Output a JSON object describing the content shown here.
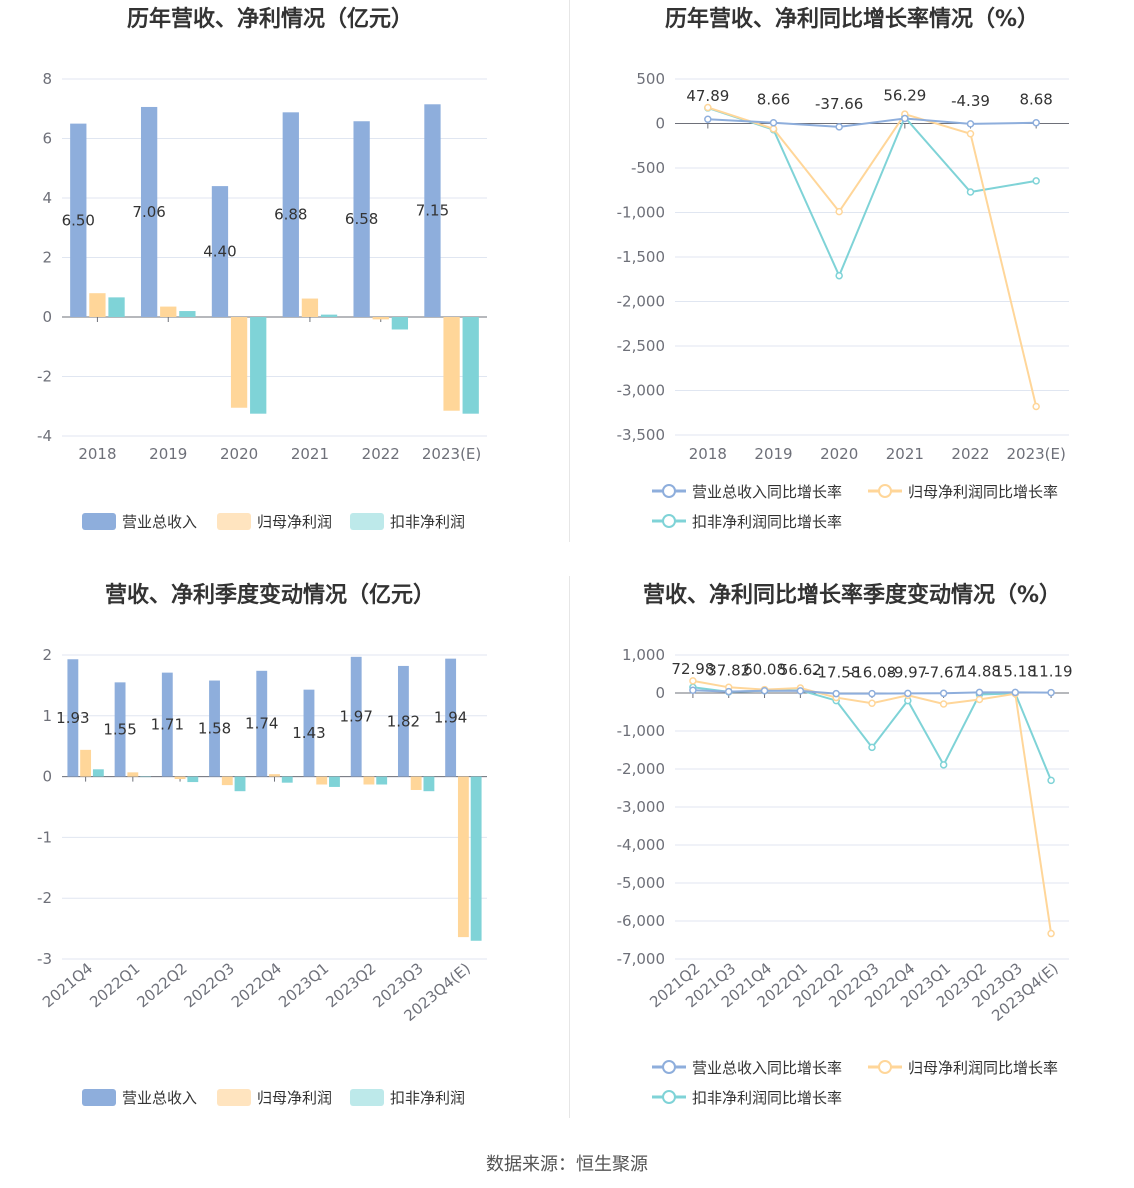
{
  "colors": {
    "revenue": "#8eaedc",
    "net_profit": "#ffd699",
    "deducted_profit": "#7fd3d7"
  },
  "source_text": "数据来源：恒生聚源",
  "chart_data": [
    {
      "id": "annual-values",
      "type": "bar",
      "title": "历年营收、净利情况（亿元）",
      "categories": [
        "2018",
        "2019",
        "2020",
        "2021",
        "2022",
        "2023(E)"
      ],
      "ylim": [
        -4,
        8
      ],
      "yticks": [
        "8",
        "6",
        "4",
        "2",
        "0",
        "-2",
        "-4"
      ],
      "ytick_values": [
        8,
        6,
        4,
        2,
        0,
        -2,
        -4
      ],
      "grid": true,
      "legend_position": "bottom",
      "series": [
        {
          "name": "营业总收入",
          "values": [
            6.5,
            7.06,
            4.4,
            6.88,
            6.58,
            7.15
          ],
          "labels": [
            "6.50",
            "7.06",
            "4.40",
            "6.88",
            "6.58",
            "7.15"
          ]
        },
        {
          "name": "归母净利润",
          "values": [
            0.8,
            0.35,
            -3.05,
            0.62,
            -0.08,
            -3.15
          ]
        },
        {
          "name": "扣非净利润",
          "values": [
            0.66,
            0.2,
            -3.25,
            0.08,
            -0.42,
            -3.25
          ]
        }
      ]
    },
    {
      "id": "annual-growth",
      "type": "line",
      "title": "历年营收、净利同比增长率情况（%）",
      "categories": [
        "2018",
        "2019",
        "2020",
        "2021",
        "2022",
        "2023(E)"
      ],
      "ylim": [
        -3500,
        500
      ],
      "yticks": [
        "500",
        "0",
        "-500",
        "-1,000",
        "-1,500",
        "-2,000",
        "-2,500",
        "-3,000",
        "-3,500"
      ],
      "ytick_values": [
        500,
        0,
        -500,
        -1000,
        -1500,
        -2000,
        -2500,
        -3000,
        -3500
      ],
      "grid": true,
      "legend_position": "bottom",
      "series": [
        {
          "name": "营业总收入同比增长率",
          "values": [
            47.89,
            8.66,
            -37.66,
            56.29,
            -4.39,
            8.68
          ],
          "labels": [
            "47.89",
            "8.66",
            "-37.66",
            "56.29",
            "-4.39",
            "8.68"
          ]
        },
        {
          "name": "归母净利润同比增长率",
          "values": [
            180,
            -60,
            -990,
            105,
            -115,
            -3180
          ]
        },
        {
          "name": "扣非净利润同比增长率",
          "values": [
            175,
            -70,
            -1710,
            70,
            -770,
            -645
          ]
        }
      ]
    },
    {
      "id": "quarterly-values",
      "type": "bar",
      "title": "营收、净利季度变动情况（亿元）",
      "categories": [
        "2021Q4",
        "2022Q1",
        "2022Q2",
        "2022Q3",
        "2022Q4",
        "2023Q1",
        "2023Q2",
        "2023Q3",
        "2023Q4(E)"
      ],
      "ylim": [
        -3,
        2
      ],
      "yticks": [
        "2",
        "1",
        "0",
        "-1",
        "-2",
        "-3"
      ],
      "ytick_values": [
        2,
        1,
        0,
        -1,
        -2,
        -3
      ],
      "grid": true,
      "legend_position": "bottom",
      "series": [
        {
          "name": "营业总收入",
          "values": [
            1.93,
            1.55,
            1.71,
            1.58,
            1.74,
            1.43,
            1.97,
            1.82,
            1.94
          ],
          "labels": [
            "1.93",
            "1.55",
            "1.71",
            "1.58",
            "1.74",
            "1.43",
            "1.97",
            "1.82",
            "1.94"
          ]
        },
        {
          "name": "归母净利润",
          "values": [
            0.44,
            0.07,
            -0.04,
            -0.14,
            0.04,
            -0.13,
            -0.13,
            -0.22,
            -2.64
          ]
        },
        {
          "name": "扣非净利润",
          "values": [
            0.12,
            0.0,
            -0.09,
            -0.24,
            -0.1,
            -0.17,
            -0.13,
            -0.24,
            -2.7
          ]
        }
      ]
    },
    {
      "id": "quarterly-growth",
      "type": "line",
      "title": "营收、净利同比增长率季度变动情况（%）",
      "categories": [
        "2021Q2",
        "2021Q3",
        "2021Q4",
        "2022Q1",
        "2022Q2",
        "2022Q3",
        "2022Q4",
        "2023Q1",
        "2023Q2",
        "2023Q3",
        "2023Q4(E)"
      ],
      "ylim": [
        -7000,
        1000
      ],
      "yticks": [
        "1,000",
        "0",
        "-1,000",
        "-2,000",
        "-3,000",
        "-4,000",
        "-5,000",
        "-6,000",
        "-7,000"
      ],
      "ytick_values": [
        1000,
        0,
        -1000,
        -2000,
        -3000,
        -4000,
        -5000,
        -6000,
        -7000
      ],
      "grid": true,
      "legend_position": "bottom",
      "series": [
        {
          "name": "营业总收入同比增长率",
          "values": [
            72.98,
            37.82,
            60.08,
            56.62,
            -17.58,
            -16.08,
            -9.97,
            -7.67,
            14.88,
            15.18,
            11.19
          ],
          "labels": [
            "72.98",
            "37.82",
            "60.08",
            "56.62",
            "-17.58",
            "-16.08",
            "-9.97",
            "-7.67",
            "14.88",
            "15.18",
            "11.19"
          ]
        },
        {
          "name": "归母净利润同比增长率",
          "values": [
            320,
            150,
            90,
            130,
            -120,
            -270,
            -60,
            -290,
            -170,
            -20,
            -6330
          ]
        },
        {
          "name": "扣非净利润同比增长率",
          "values": [
            150,
            30,
            60,
            70,
            -200,
            -1430,
            -200,
            -1890,
            -40,
            -10,
            -2300
          ]
        }
      ]
    }
  ]
}
